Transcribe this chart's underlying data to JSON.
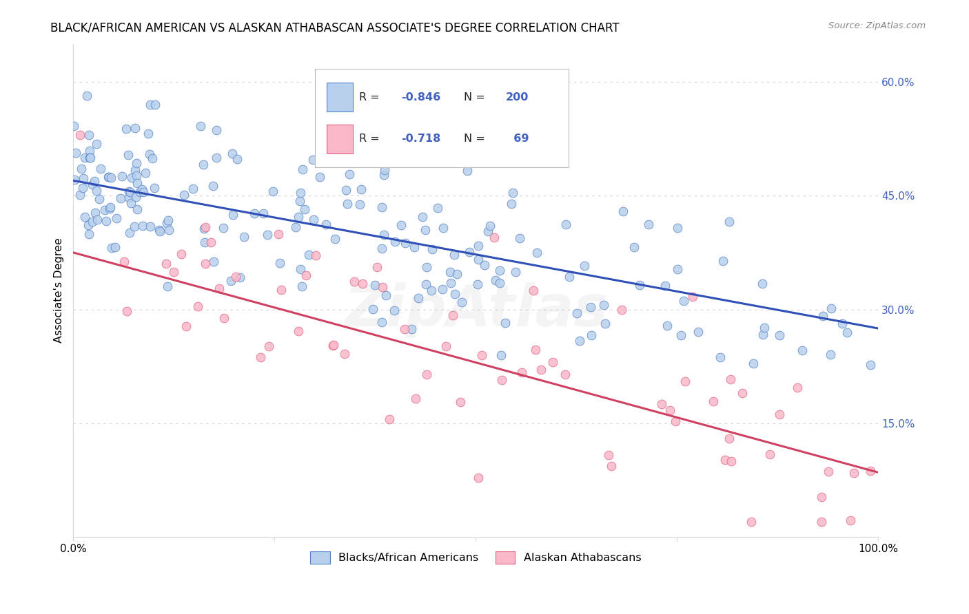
{
  "title": "BLACK/AFRICAN AMERICAN VS ALASKAN ATHABASCAN ASSOCIATE'S DEGREE CORRELATION CHART",
  "source_text": "Source: ZipAtlas.com",
  "ylabel": "Associate's Degree",
  "ytick_labels": [
    "15.0%",
    "30.0%",
    "45.0%",
    "60.0%"
  ],
  "ytick_positions": [
    0.15,
    0.3,
    0.45,
    0.6
  ],
  "legend_label_blue": "Blacks/African Americans",
  "legend_label_pink": "Alaskan Athabascans",
  "legend_r_blue": "-0.846",
  "legend_n_blue": "200",
  "legend_r_pink": "-0.718",
  "legend_n_pink": "69",
  "blue_fill_color": "#b8d0ec",
  "blue_edge_color": "#5080c8",
  "pink_fill_color": "#f8b8c8",
  "pink_edge_color": "#e06080",
  "blue_line_color": "#3050b8",
  "pink_line_color": "#d04060",
  "blue_trendline_start_y": 0.47,
  "blue_trendline_end_y": 0.275,
  "pink_trendline_start_y": 0.375,
  "pink_trendline_end_y": 0.085,
  "xlim": [
    0.0,
    1.0
  ],
  "ylim": [
    0.0,
    0.65
  ],
  "watermark_text": "ZipAtlas",
  "watermark_alpha": 0.12,
  "grid_color": "#d8d8d8",
  "right_tick_color": "#4060c0"
}
